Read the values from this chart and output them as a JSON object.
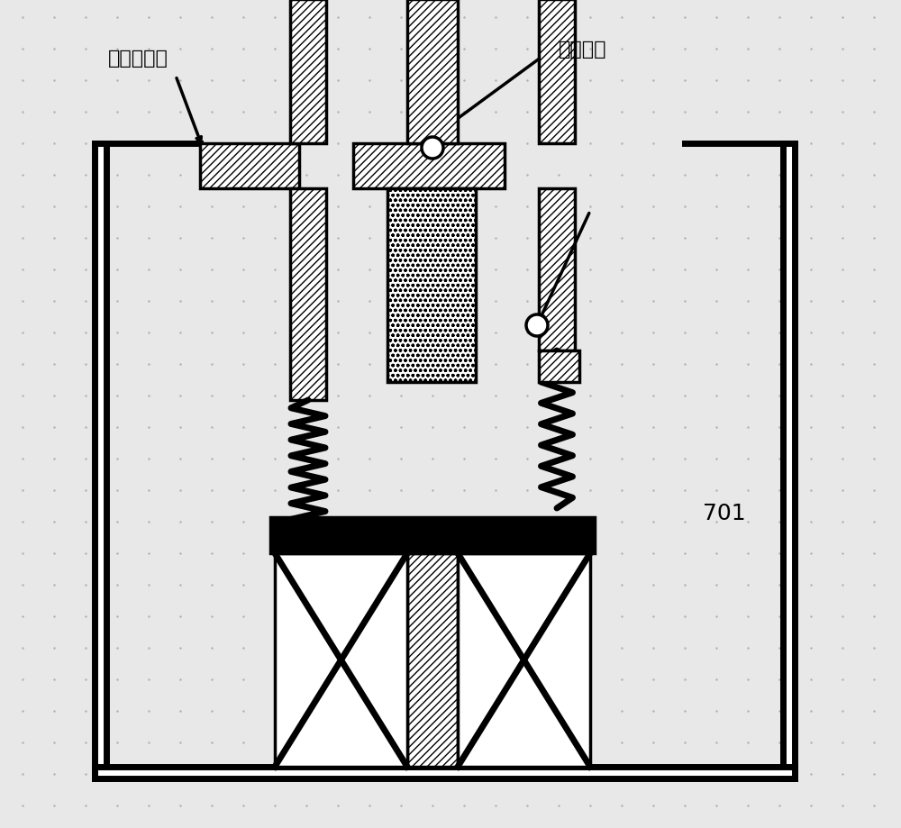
{
  "bg_color": "#e8e8e8",
  "dot_color": "#aaaaaa",
  "line_color": "#000000",
  "hatch_diagonal": "////",
  "hatch_grid": "xxxx",
  "label_left": "计量泵外壳",
  "label_right": "可变形体",
  "label_701": "701",
  "title": "",
  "lw": 2.5,
  "lw_thick": 5
}
